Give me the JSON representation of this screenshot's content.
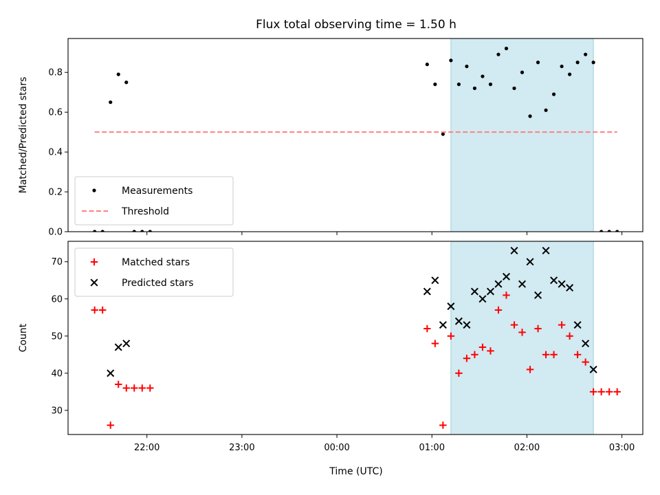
{
  "chart_data": {
    "title": "Flux total observing time = 1.50 h",
    "shaded_interval": [
      "01:12",
      "02:42"
    ],
    "shade_color": "#add8e6",
    "x_axis": {
      "label": "Time (UTC)",
      "ticks": [
        "22:00",
        "23:00",
        "00:00",
        "01:00",
        "02:00",
        "03:00"
      ],
      "tick_hours": [
        22,
        23,
        24,
        25,
        26,
        27
      ],
      "range_hours": [
        21.17,
        27.22
      ]
    },
    "panels": [
      {
        "type": "scatter",
        "ylabel": "Matched/Predicted stars",
        "ylim": [
          0.0,
          0.97
        ],
        "yticks": [
          0.0,
          0.2,
          0.4,
          0.6,
          0.8
        ],
        "ytick_labels": [
          "0.0",
          "0.2",
          "0.4",
          "0.6",
          "0.8"
        ],
        "legend_position": "lower-left",
        "series": [
          {
            "name": "Measurements",
            "marker": "dot",
            "color": "#000000",
            "points": [
              [
                "21:27",
                0.0
              ],
              [
                "21:32",
                0.0
              ],
              [
                "21:37",
                0.65
              ],
              [
                "21:42",
                0.79
              ],
              [
                "21:47",
                0.75
              ],
              [
                "21:52",
                0.0
              ],
              [
                "21:57",
                0.0
              ],
              [
                "22:02",
                0.0
              ],
              [
                "00:57",
                0.84
              ],
              [
                "01:02",
                0.74
              ],
              [
                "01:07",
                0.49
              ],
              [
                "01:12",
                0.86
              ],
              [
                "01:17",
                0.74
              ],
              [
                "01:22",
                0.83
              ],
              [
                "01:27",
                0.72
              ],
              [
                "01:32",
                0.78
              ],
              [
                "01:37",
                0.74
              ],
              [
                "01:42",
                0.89
              ],
              [
                "01:47",
                0.92
              ],
              [
                "01:52",
                0.72
              ],
              [
                "01:57",
                0.8
              ],
              [
                "02:02",
                0.58
              ],
              [
                "02:07",
                0.85
              ],
              [
                "02:12",
                0.61
              ],
              [
                "02:17",
                0.69
              ],
              [
                "02:22",
                0.83
              ],
              [
                "02:27",
                0.79
              ],
              [
                "02:32",
                0.85
              ],
              [
                "02:37",
                0.89
              ],
              [
                "02:42",
                0.85
              ],
              [
                "02:47",
                0.0
              ],
              [
                "02:52",
                0.0
              ],
              [
                "02:57",
                0.0
              ]
            ]
          },
          {
            "name": "Threshold",
            "type": "line",
            "style": "dashed",
            "color": "#ff7f7f",
            "points": [
              [
                "21:27",
                0.5
              ],
              [
                "02:57",
                0.5
              ]
            ]
          }
        ]
      },
      {
        "type": "scatter",
        "ylabel": "Count",
        "ylim": [
          23.5,
          75.5
        ],
        "yticks": [
          30,
          40,
          50,
          60,
          70
        ],
        "ytick_labels": [
          "30",
          "40",
          "50",
          "60",
          "70"
        ],
        "legend_position": "upper-left",
        "series": [
          {
            "name": "Matched stars",
            "marker": "plus",
            "color": "#ff0000",
            "points": [
              [
                "21:27",
                57
              ],
              [
                "21:32",
                57
              ],
              [
                "21:37",
                26
              ],
              [
                "21:42",
                37
              ],
              [
                "21:47",
                36
              ],
              [
                "21:52",
                36
              ],
              [
                "21:57",
                36
              ],
              [
                "22:02",
                36
              ],
              [
                "00:57",
                52
              ],
              [
                "01:02",
                48
              ],
              [
                "01:07",
                26
              ],
              [
                "01:12",
                50
              ],
              [
                "01:17",
                40
              ],
              [
                "01:22",
                44
              ],
              [
                "01:27",
                45
              ],
              [
                "01:32",
                47
              ],
              [
                "01:37",
                46
              ],
              [
                "01:42",
                57
              ],
              [
                "01:47",
                61
              ],
              [
                "01:52",
                53
              ],
              [
                "01:57",
                51
              ],
              [
                "02:02",
                41
              ],
              [
                "02:07",
                52
              ],
              [
                "02:12",
                45
              ],
              [
                "02:17",
                45
              ],
              [
                "02:22",
                53
              ],
              [
                "02:27",
                50
              ],
              [
                "02:32",
                45
              ],
              [
                "02:37",
                43
              ],
              [
                "02:42",
                35
              ],
              [
                "02:47",
                35
              ],
              [
                "02:52",
                35
              ],
              [
                "02:57",
                35
              ]
            ]
          },
          {
            "name": "Predicted stars",
            "marker": "x",
            "color": "#000000",
            "points": [
              [
                "21:37",
                40
              ],
              [
                "21:42",
                47
              ],
              [
                "21:47",
                48
              ],
              [
                "00:57",
                62
              ],
              [
                "01:02",
                65
              ],
              [
                "01:07",
                53
              ],
              [
                "01:12",
                58
              ],
              [
                "01:17",
                54
              ],
              [
                "01:22",
                53
              ],
              [
                "01:27",
                62
              ],
              [
                "01:32",
                60
              ],
              [
                "01:37",
                62
              ],
              [
                "01:42",
                64
              ],
              [
                "01:47",
                66
              ],
              [
                "01:52",
                73
              ],
              [
                "01:57",
                64
              ],
              [
                "02:02",
                70
              ],
              [
                "02:07",
                61
              ],
              [
                "02:12",
                73
              ],
              [
                "02:17",
                65
              ],
              [
                "02:22",
                64
              ],
              [
                "02:27",
                63
              ],
              [
                "02:32",
                53
              ],
              [
                "02:37",
                48
              ],
              [
                "02:42",
                41
              ]
            ]
          }
        ]
      }
    ]
  }
}
